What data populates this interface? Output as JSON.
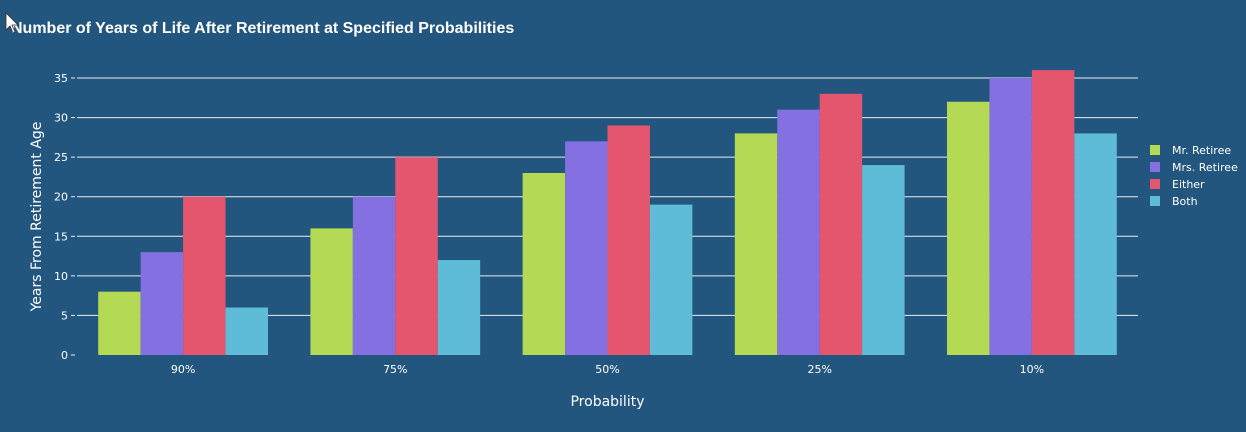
{
  "chart_data": {
    "type": "bar",
    "title": "Number of Years of Life After Retirement at Specified Probabilities",
    "xlabel": "Probability",
    "ylabel": "Years From Retirement Age",
    "categories": [
      "90%",
      "75%",
      "50%",
      "25%",
      "10%"
    ],
    "series": [
      {
        "name": "Mr. Retiree",
        "color": "#b3d955",
        "values": [
          8,
          16,
          23,
          28,
          32
        ]
      },
      {
        "name": "Mrs. Retiree",
        "color": "#8470e0",
        "values": [
          13,
          20,
          27,
          31,
          35
        ]
      },
      {
        "name": "Either",
        "color": "#e4566e",
        "values": [
          20,
          25,
          29,
          33,
          36
        ]
      },
      {
        "name": "Both",
        "color": "#5fbcd9",
        "values": [
          6,
          12,
          19,
          24,
          28
        ]
      }
    ],
    "yticks": [
      0,
      5,
      10,
      15,
      20,
      25,
      30,
      35
    ],
    "ylim": [
      0,
      35
    ],
    "grid": true,
    "legend": "right",
    "background": "#22567e"
  }
}
